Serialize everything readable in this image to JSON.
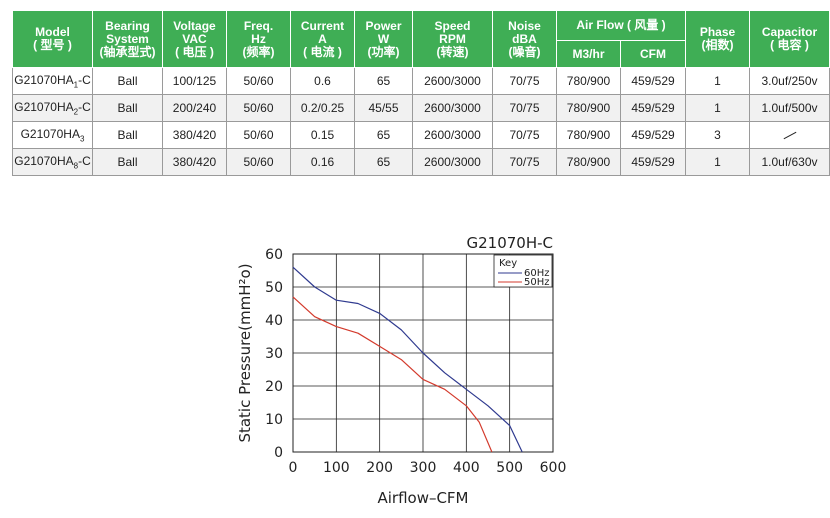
{
  "table": {
    "headers": [
      {
        "en": "Model",
        "cn": "( 型号 )"
      },
      {
        "en": "Bearing\nSystem",
        "cn": "(轴承型式)"
      },
      {
        "en": "Voltage\nVAC",
        "cn": "( 电压 )"
      },
      {
        "en": "Freq.\nHz",
        "cn": "(频率)"
      },
      {
        "en": "Current\nA",
        "cn": "( 电流 )"
      },
      {
        "en": "Power\nW",
        "cn": "(功率)"
      },
      {
        "en": "Speed\nRPM",
        "cn": "(转速)"
      },
      {
        "en": "Noise\ndBA",
        "cn": "(噪音)"
      },
      {
        "en": "Phase",
        "cn": "(相数)"
      },
      {
        "en": "Capacitor",
        "cn": "( 电容 )"
      }
    ],
    "airflow_header": "Air Flow ( 风量 )",
    "airflow_sub": [
      "M3/hr",
      "CFM"
    ],
    "rows": [
      {
        "model": "G21070HA",
        "model_sub": "1",
        "model_suffix": "-C",
        "bearing": "Ball",
        "voltage": "100/125",
        "freq": "50/60",
        "current": "0.6",
        "power": "65",
        "speed": "2600/3000",
        "noise": "70/75",
        "m3hr": "780/900",
        "cfm": "459/529",
        "phase": "1",
        "capacitor": "3.0uf/250v"
      },
      {
        "model": "G21070HA",
        "model_sub": "2",
        "model_suffix": "-C",
        "bearing": "Ball",
        "voltage": "200/240",
        "freq": "50/60",
        "current": "0.2/0.25",
        "power": "45/55",
        "speed": "2600/3000",
        "noise": "70/75",
        "m3hr": "780/900",
        "cfm": "459/529",
        "phase": "1",
        "capacitor": "1.0uf/500v"
      },
      {
        "model": "G21070HA",
        "model_sub": "3",
        "model_suffix": "",
        "bearing": "Ball",
        "voltage": "380/420",
        "freq": "50/60",
        "current": "0.15",
        "power": "65",
        "speed": "2600/3000",
        "noise": "70/75",
        "m3hr": "780/900",
        "cfm": "459/529",
        "phase": "3",
        "capacitor": ""
      },
      {
        "model": "G21070HA",
        "model_sub": "8",
        "model_suffix": "-C",
        "bearing": "Ball",
        "voltage": "380/420",
        "freq": "50/60",
        "current": "0.16",
        "power": "65",
        "speed": "2600/3000",
        "noise": "70/75",
        "m3hr": "780/900",
        "cfm": "459/529",
        "phase": "1",
        "capacitor": "1.0uf/630v"
      }
    ]
  },
  "colors": {
    "header_bg": "#3fae55",
    "series_60hz": "#2f3a8f",
    "series_50hz": "#d33a2c"
  },
  "chart_data": {
    "type": "line",
    "title": "G21070H-C",
    "xlabel": "Airflow–CFM",
    "ylabel": "Static Pressure(mmH²o)",
    "xlim": [
      0,
      600
    ],
    "ylim": [
      0,
      60
    ],
    "x_ticks": [
      0,
      100,
      200,
      300,
      400,
      500,
      600
    ],
    "y_ticks": [
      0,
      10,
      20,
      30,
      40,
      50,
      60
    ],
    "grid": true,
    "legend": {
      "title": "Key",
      "placement": "top-right"
    },
    "series": [
      {
        "name": "60Hz",
        "color": "#2f3a8f",
        "x": [
          0,
          50,
          100,
          150,
          200,
          250,
          300,
          350,
          400,
          450,
          500,
          529
        ],
        "y": [
          56,
          50,
          46,
          45,
          42,
          37,
          30,
          24,
          19,
          14,
          8,
          0
        ]
      },
      {
        "name": "50Hz",
        "color": "#d33a2c",
        "x": [
          0,
          50,
          100,
          150,
          200,
          250,
          300,
          350,
          400,
          430,
          459
        ],
        "y": [
          47,
          41,
          38,
          36,
          32,
          28,
          22,
          19,
          14,
          9,
          0
        ]
      }
    ]
  }
}
